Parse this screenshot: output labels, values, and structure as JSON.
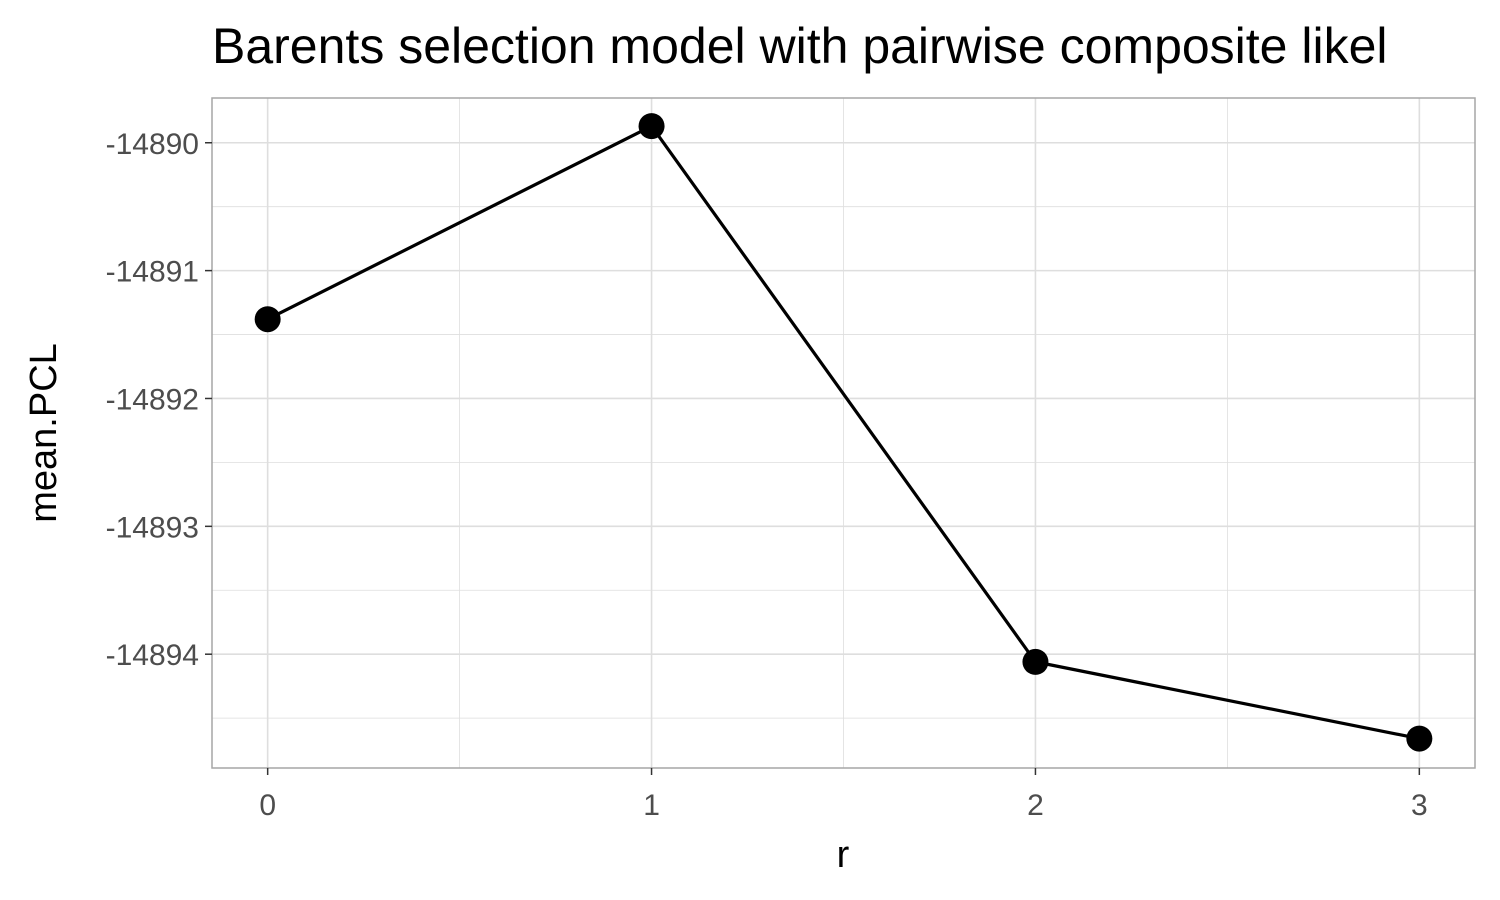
{
  "chart_data": {
    "type": "line",
    "title": "Barents selection model with pairwise composite likel",
    "xlabel": "r",
    "ylabel": "mean.PCL",
    "x": [
      0,
      1,
      2,
      3
    ],
    "series": [
      {
        "values": [
          -14891.38,
          -14889.87,
          -14894.06,
          -14894.66
        ]
      }
    ],
    "x_ticks": [
      "0",
      "1",
      "2",
      "3"
    ],
    "y_ticks": [
      "-14890",
      "-14891",
      "-14892",
      "-14893",
      "-14894"
    ],
    "xlim": [
      -0.145,
      3.145
    ],
    "ylim": [
      -14894.89,
      -14889.65
    ],
    "grid": true,
    "legend": "none",
    "colors": {
      "line": "#000000",
      "point": "#000000",
      "grid": "#dedede",
      "panel_border": "#a6a6a6",
      "tick_text": "#4d4d4d"
    }
  }
}
